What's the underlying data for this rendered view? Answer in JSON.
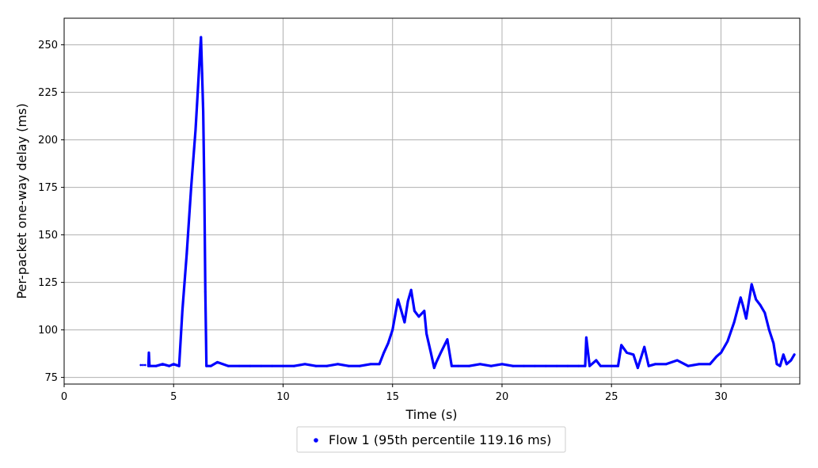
{
  "chart_data": {
    "type": "scatter",
    "title": "",
    "xlabel": "Time (s)",
    "ylabel": "Per-packet one-way delay (ms)",
    "xlim": [
      0,
      33.6
    ],
    "ylim": [
      71.5,
      264
    ],
    "xticks": [
      0,
      5,
      10,
      15,
      20,
      25,
      30
    ],
    "yticks": [
      75,
      100,
      125,
      150,
      175,
      200,
      225,
      250
    ],
    "grid": true,
    "legend_position": "bottom-center",
    "series": [
      {
        "name": "Flow 1 (95th percentile 119.16 ms)",
        "color": "#0000ff",
        "points": [
          [
            3.5,
            81.5
          ],
          [
            3.6,
            81.5
          ],
          [
            3.7,
            81.5
          ],
          [
            3.85,
            81
          ],
          [
            3.87,
            88
          ],
          [
            3.9,
            81
          ],
          [
            4.2,
            81
          ],
          [
            4.5,
            82
          ],
          [
            4.8,
            81
          ],
          [
            5.0,
            82
          ],
          [
            5.25,
            81
          ],
          [
            5.4,
            110
          ],
          [
            5.6,
            140
          ],
          [
            5.8,
            175
          ],
          [
            6.0,
            205
          ],
          [
            6.1,
            225
          ],
          [
            6.2,
            245
          ],
          [
            6.25,
            254
          ],
          [
            6.3,
            235
          ],
          [
            6.35,
            215
          ],
          [
            6.4,
            175
          ],
          [
            6.45,
            120
          ],
          [
            6.5,
            81
          ],
          [
            6.7,
            81
          ],
          [
            7.0,
            83
          ],
          [
            7.5,
            81
          ],
          [
            8.0,
            81
          ],
          [
            8.5,
            81
          ],
          [
            9.0,
            81
          ],
          [
            9.5,
            81
          ],
          [
            10.0,
            81
          ],
          [
            10.5,
            81
          ],
          [
            11.0,
            82
          ],
          [
            11.5,
            81
          ],
          [
            12.0,
            81
          ],
          [
            12.5,
            82
          ],
          [
            13.0,
            81
          ],
          [
            13.5,
            81
          ],
          [
            14.0,
            82
          ],
          [
            14.4,
            82
          ],
          [
            14.6,
            88
          ],
          [
            14.8,
            93
          ],
          [
            15.0,
            100
          ],
          [
            15.2,
            113
          ],
          [
            15.25,
            116
          ],
          [
            15.4,
            110
          ],
          [
            15.55,
            104
          ],
          [
            15.7,
            115
          ],
          [
            15.85,
            121
          ],
          [
            16.0,
            110
          ],
          [
            16.2,
            107
          ],
          [
            16.45,
            110
          ],
          [
            16.55,
            98
          ],
          [
            16.75,
            88
          ],
          [
            16.9,
            80
          ],
          [
            17.0,
            83
          ],
          [
            17.2,
            88
          ],
          [
            17.5,
            95
          ],
          [
            17.7,
            81
          ],
          [
            18.0,
            81
          ],
          [
            18.5,
            81
          ],
          [
            19.0,
            82
          ],
          [
            19.5,
            81
          ],
          [
            20.0,
            82
          ],
          [
            20.5,
            81
          ],
          [
            21.0,
            81
          ],
          [
            21.5,
            81
          ],
          [
            22.0,
            81
          ],
          [
            22.5,
            81
          ],
          [
            23.0,
            81
          ],
          [
            23.5,
            81
          ],
          [
            23.8,
            81
          ],
          [
            23.85,
            96
          ],
          [
            24.0,
            81
          ],
          [
            24.3,
            84
          ],
          [
            24.5,
            81
          ],
          [
            25.0,
            81
          ],
          [
            25.3,
            81
          ],
          [
            25.45,
            92
          ],
          [
            25.7,
            88
          ],
          [
            26.0,
            87
          ],
          [
            26.2,
            80
          ],
          [
            26.5,
            91
          ],
          [
            26.7,
            81
          ],
          [
            27.0,
            82
          ],
          [
            27.5,
            82
          ],
          [
            28.0,
            84
          ],
          [
            28.5,
            81
          ],
          [
            29.0,
            82
          ],
          [
            29.5,
            82
          ],
          [
            29.8,
            86
          ],
          [
            30.0,
            88
          ],
          [
            30.3,
            94
          ],
          [
            30.6,
            104
          ],
          [
            30.9,
            117
          ],
          [
            31.0,
            113
          ],
          [
            31.15,
            106
          ],
          [
            31.4,
            124
          ],
          [
            31.6,
            116
          ],
          [
            31.8,
            113
          ],
          [
            32.0,
            109
          ],
          [
            32.2,
            100
          ],
          [
            32.4,
            93
          ],
          [
            32.55,
            82
          ],
          [
            32.7,
            81
          ],
          [
            32.85,
            87
          ],
          [
            33.0,
            82
          ],
          [
            33.2,
            84
          ],
          [
            33.35,
            87
          ]
        ]
      }
    ]
  }
}
